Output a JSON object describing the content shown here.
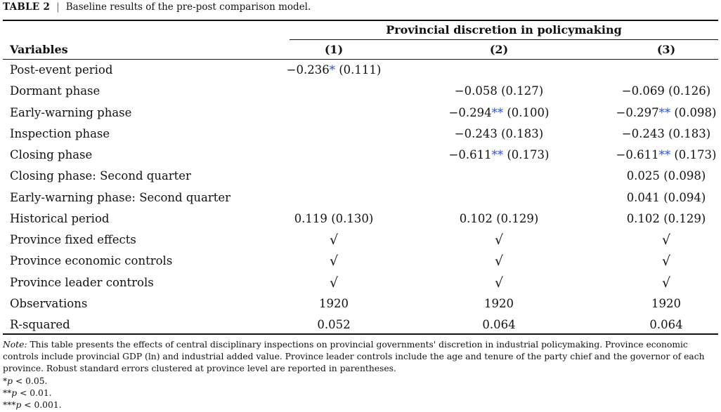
{
  "caption": {
    "label": "TABLE 2",
    "separator": "|",
    "text": "Baseline results of the pre-post comparison model."
  },
  "header": {
    "spanner": "Provincial discretion in policymaking",
    "variables_label": "Variables",
    "columns": [
      "(1)",
      "(2)",
      "(3)"
    ]
  },
  "rows": [
    {
      "label": "Post-event period",
      "c1": {
        "coef": "−0.236",
        "stars": "*",
        "se": "(0.111)"
      },
      "c2": null,
      "c3": null
    },
    {
      "label": "Dormant phase",
      "c1": null,
      "c2": {
        "coef": "−0.058",
        "stars": "",
        "se": "(0.127)"
      },
      "c3": {
        "coef": "−0.069",
        "stars": "",
        "se": "(0.126)"
      }
    },
    {
      "label": "Early-warning phase",
      "c1": null,
      "c2": {
        "coef": "−0.294",
        "stars": "**",
        "se": "(0.100)"
      },
      "c3": {
        "coef": "−0.297",
        "stars": "**",
        "se": "(0.098)"
      }
    },
    {
      "label": "Inspection phase",
      "c1": null,
      "c2": {
        "coef": "−0.243",
        "stars": "",
        "se": "(0.183)"
      },
      "c3": {
        "coef": "−0.243",
        "stars": "",
        "se": "(0.183)"
      }
    },
    {
      "label": "Closing phase",
      "c1": null,
      "c2": {
        "coef": "−0.611",
        "stars": "**",
        "se": "(0.173)"
      },
      "c3": {
        "coef": "−0.611",
        "stars": "**",
        "se": "(0.173)"
      }
    },
    {
      "label": "Closing phase: Second quarter",
      "c1": null,
      "c2": null,
      "c3": {
        "coef": "0.025",
        "stars": "",
        "se": "(0.098)"
      }
    },
    {
      "label": "Early-warning phase: Second quarter",
      "c1": null,
      "c2": null,
      "c3": {
        "coef": "0.041",
        "stars": "",
        "se": "(0.094)"
      }
    },
    {
      "label": "Historical period",
      "c1": {
        "coef": "0.119",
        "stars": "",
        "se": "(0.130)"
      },
      "c2": {
        "coef": "0.102",
        "stars": "",
        "se": "(0.129)"
      },
      "c3": {
        "coef": "0.102",
        "stars": "",
        "se": "(0.129)"
      }
    },
    {
      "label": "Province fixed effects",
      "c1": {
        "text": "√"
      },
      "c2": {
        "text": "√"
      },
      "c3": {
        "text": "√"
      },
      "check": true
    },
    {
      "label": "Province economic controls",
      "c1": {
        "text": "√"
      },
      "c2": {
        "text": "√"
      },
      "c3": {
        "text": "√"
      },
      "check": true
    },
    {
      "label": "Province leader controls",
      "c1": {
        "text": "√"
      },
      "c2": {
        "text": "√"
      },
      "c3": {
        "text": "√"
      },
      "check": true
    },
    {
      "label": "Observations",
      "c1": {
        "text": "1920"
      },
      "c2": {
        "text": "1920"
      },
      "c3": {
        "text": "1920"
      }
    },
    {
      "label": "R-squared",
      "c1": {
        "text": "0.052"
      },
      "c2": {
        "text": "0.064"
      },
      "c3": {
        "text": "0.064"
      }
    }
  ],
  "notes": {
    "note_label": "Note:",
    "note_text": "This table presents the effects of central disciplinary inspections on provincial governments' discretion in industrial policymaking. Province economic controls include provincial GDP (ln) and industrial added value. Province leader controls include the age and tenure of the party chief and the governor of each province. Robust standard errors clustered at province level are reported in parentheses.",
    "significance": [
      {
        "stars": "*",
        "p": "p",
        "rest": " < 0.05."
      },
      {
        "stars": "**",
        "p": "p",
        "rest": " < 0.01."
      },
      {
        "stars": "***",
        "p": "p",
        "rest": " < 0.001."
      }
    ]
  },
  "colors": {
    "significance_star": "#2a4fd7",
    "rule": "#111111"
  }
}
